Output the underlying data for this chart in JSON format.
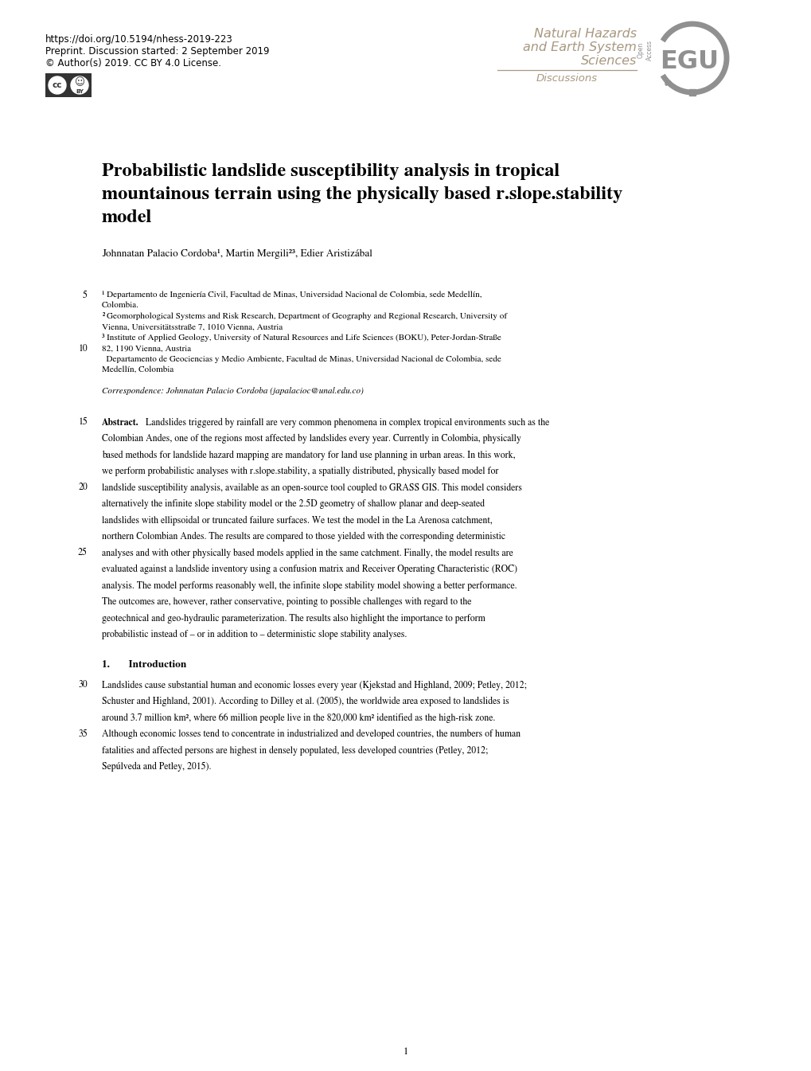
{
  "bg_color": "#ffffff",
  "header_doi": "https://doi.org/10.5194/nhess-2019-223",
  "header_preprint": "Preprint. Discussion started: 2 September 2019",
  "header_copyright": "© Author(s) 2019. CC BY 4.0 License.",
  "journal_line1": "Natural Hazards",
  "journal_line2": "and Earth System",
  "journal_line3": "Sciences",
  "journal_line4": "Discussions",
  "paper_title_line1": "Probabilistic landslide susceptibility analysis in tropical",
  "paper_title_line2": "mountainous terrain using the physically based r.slope.stability",
  "paper_title_line3": "model",
  "authors": "Johnnatan Palacio Cordoba¹, Martin Mergili²³, Edier Aristizábal⁴",
  "affil1a": "¹ Departamento de Ingeniería Civil, Facultad de Minas, Universidad Nacional de Colombia, sede Medellín,",
  "affil1b": "Colombia.",
  "affil2a": "² Geomorphological Systems and Risk Research, Department of Geography and Regional Research, University of",
  "affil2b": "Vienna, Universitätsstraße 7, 1010 Vienna, Austria",
  "affil3a": "³ Institute of Applied Geology, University of Natural Resources and Life Sciences (BOKU), Peter-Jordan-Straße",
  "affil3b": "82, 1190 Vienna, Austria",
  "affil4a": "⁴ Departamento de Geociencias y Medio Ambiente, Facultad de Minas, Universidad Nacional de Colombia, sede",
  "affil4b": "Medellín, Colombia",
  "correspondence": "Correspondence: Johnnatan Palacio Cordoba (japalacioc@unal.edu.co)",
  "line_num_5": "5",
  "line_num_10": "10",
  "line_num_15": "15",
  "line_num_20": "20",
  "line_num_25": "25",
  "line_num_30": "30",
  "line_num_35": "35",
  "abstract_label": "Abstract.",
  "abstract_body": "Landslides triggered by rainfall are very common phenomena in complex tropical environments such as the Colombian Andes, one of the regions most affected by landslides every year. Currently in Colombia, physically based methods for landslide hazard mapping are mandatory for land use planning in urban areas. In this work, we perform probabilistic analyses with r.slope.stability, a spatially distributed, physically based model for landslide susceptibility analysis, available as an open-source tool coupled to GRASS GIS. This model considers alternatively the infinite slope stability model or the 2.5D geometry of shallow planar and deep-seated landslides with ellipsoidal or truncated failure surfaces. We test the model in the La Arenosa catchment, northern Colombian Andes. The results are compared to those yielded with the corresponding deterministic analyses and with other physically based models applied in the same catchment. Finally, the model results are evaluated against a landslide inventory using a confusion matrix and Receiver Operating Characteristic (ROC) analysis. The model performs reasonably well, the infinite slope stability model showing a better performance. The outcomes are, however, rather conservative, pointing to possible challenges with regard to the geotechnical and geo-hydraulic parameterization. The results also highlight the importance to perform probabilistic instead of – or in addition to – deterministic slope stability analyses.",
  "intro_heading": "1.       Introduction",
  "intro_body": "Landslides cause substantial human and economic losses every year (Kjekstad and Highland, 2009; Petley, 2012; Schuster and Highland, 2001). According to Dilley et al. (2005), the worldwide area exposed to landslides is around 3.7 million km², where 66 million people live in the 820,000 km² identified as the high-risk zone. Although economic losses tend to concentrate in industrialized and developed countries, the numbers of human fatalities and affected persons are highest in densely populated, less developed countries (Petley, 2012; Sepúlveda and Petley, 2015).",
  "page_number": "1",
  "text_color": "#000000",
  "journal_color": "#a89880",
  "egu_color": "#909090"
}
